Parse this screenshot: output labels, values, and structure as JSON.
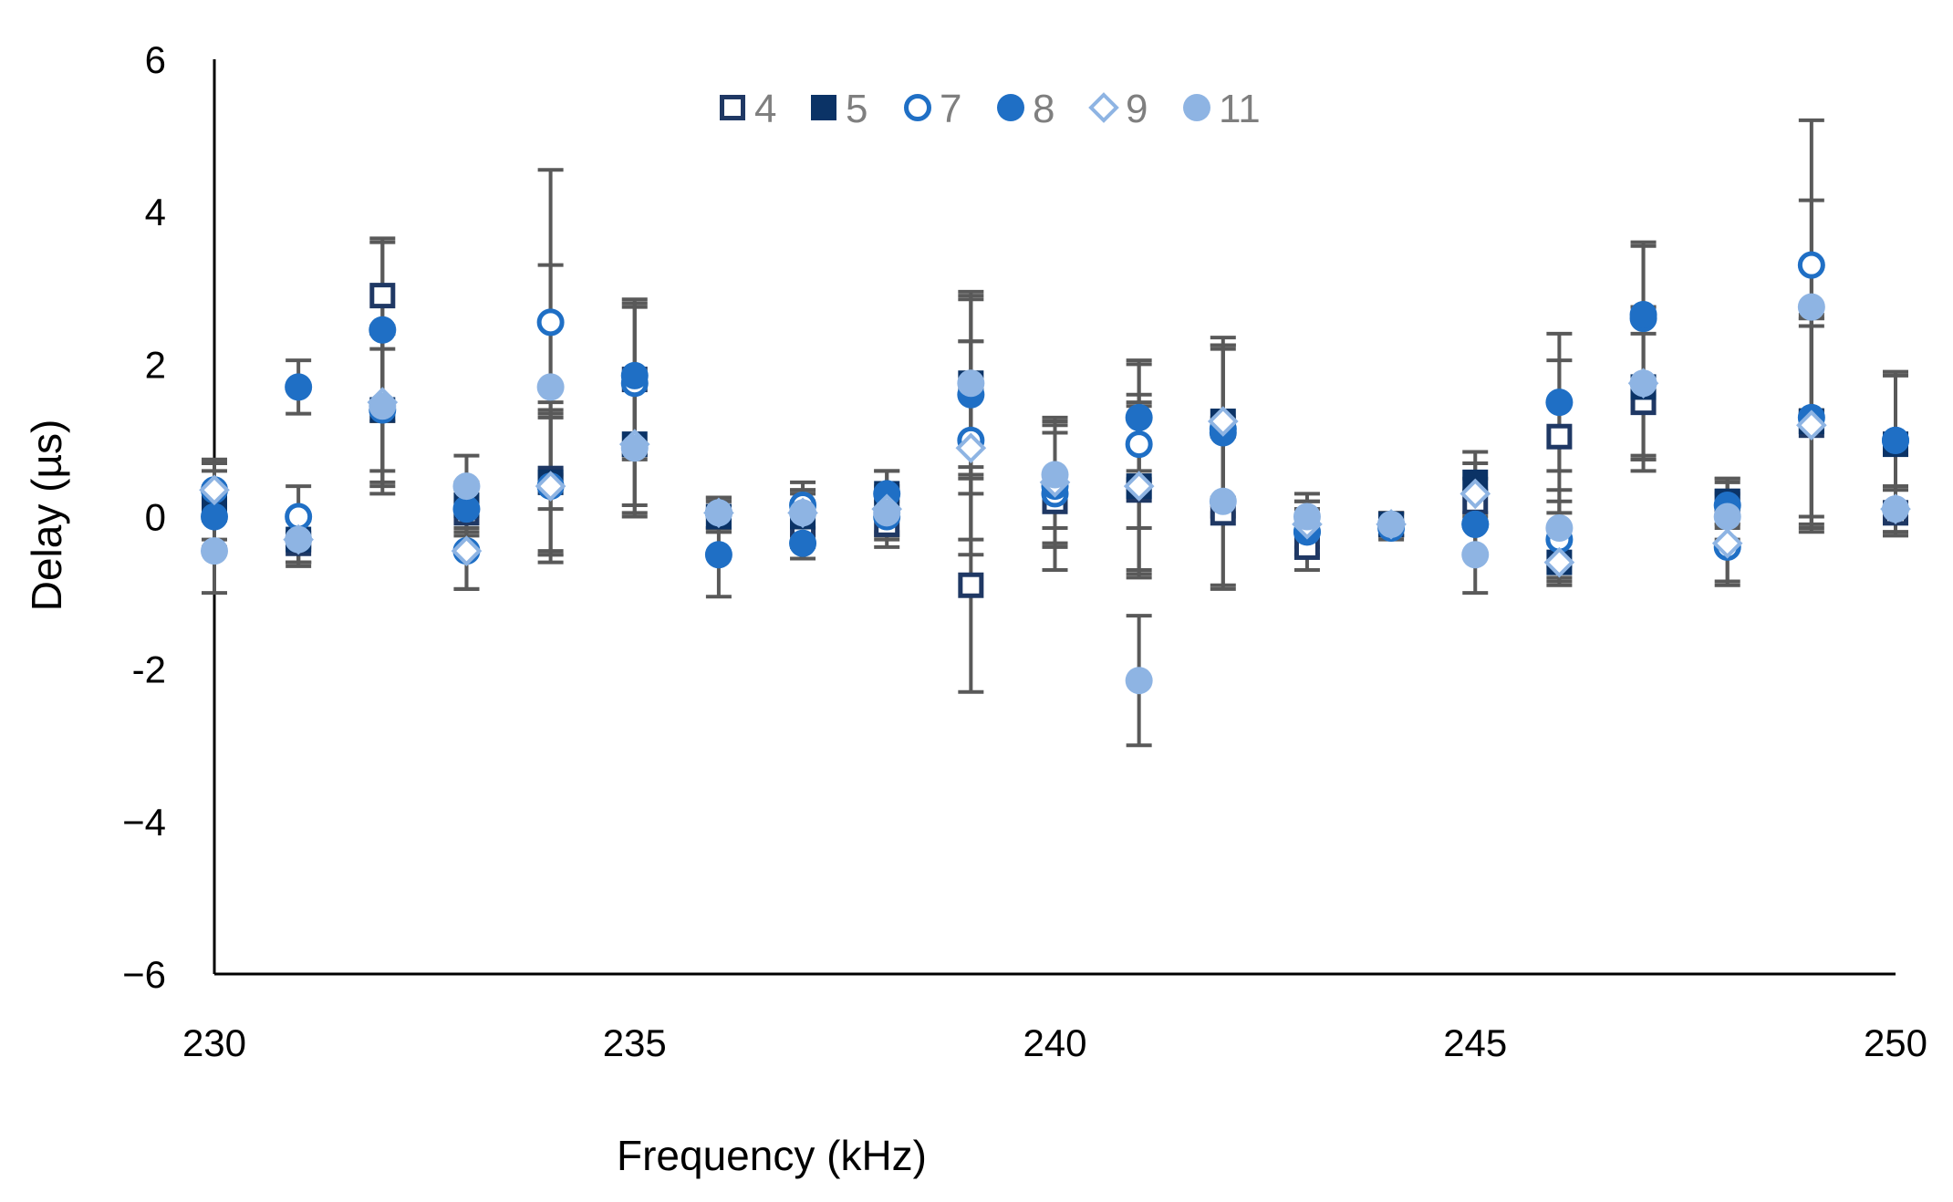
{
  "chart_data": {
    "type": "scatter",
    "title": "",
    "xlabel": "Frequency (kHz)",
    "ylabel": "Delay (µs)",
    "xlim": [
      230,
      250
    ],
    "ylim": [
      -6,
      6
    ],
    "xticks": [
      230,
      235,
      240,
      245,
      250
    ],
    "yticks": [
      6,
      4,
      2,
      0,
      -2,
      -4,
      -6
    ],
    "ytick_labels": [
      "6",
      "4",
      "2",
      "0",
      "-2",
      "−4",
      "−6"
    ],
    "grid": false,
    "legend_position": "top-center",
    "series": [
      {
        "name": "4",
        "marker": "square",
        "filled": false,
        "color": "#1f3864",
        "points": [
          {
            "x": 230,
            "y": 0.2,
            "err": 0.5
          },
          {
            "x": 231,
            "y": -0.35,
            "err": 0.3
          },
          {
            "x": 232,
            "y": 2.9,
            "err": 0.7
          },
          {
            "x": 233,
            "y": 0.05,
            "err": 0.3
          },
          {
            "x": 234,
            "y": 0.5,
            "err": 1.0
          },
          {
            "x": 235,
            "y": 1.8,
            "err": 1.0
          },
          {
            "x": 236,
            "y": 0.0,
            "err": 0.2
          },
          {
            "x": 237,
            "y": -0.1,
            "err": 0.3
          },
          {
            "x": 238,
            "y": -0.1,
            "err": 0.3
          },
          {
            "x": 239,
            "y": -0.9,
            "err": 1.4
          },
          {
            "x": 240,
            "y": 0.2,
            "err": 0.9
          },
          {
            "x": 241,
            "y": 0.35,
            "err": 1.1
          },
          {
            "x": 242,
            "y": 0.05,
            "err": 1.0
          },
          {
            "x": 243,
            "y": -0.4,
            "err": 0.3
          },
          {
            "x": 244,
            "y": -0.1,
            "err": 0.15
          },
          {
            "x": 245,
            "y": 0.2,
            "err": 0.3
          },
          {
            "x": 246,
            "y": 1.05,
            "err": 1.0
          },
          {
            "x": 247,
            "y": 1.5,
            "err": 0.9
          },
          {
            "x": 248,
            "y": 0.2,
            "err": 0.3
          },
          {
            "x": 249,
            "y": 1.2,
            "err": 1.3
          },
          {
            "x": 250,
            "y": 0.05,
            "err": 0.3
          }
        ]
      },
      {
        "name": "5",
        "marker": "square",
        "filled": true,
        "color": "#0b3366",
        "points": [
          {
            "x": 230,
            "y": 0.1,
            "err": 0.5
          },
          {
            "x": 231,
            "y": -0.3,
            "err": 0.3
          },
          {
            "x": 232,
            "y": 1.4,
            "err": 1.1
          },
          {
            "x": 233,
            "y": 0.15,
            "err": 0.3
          },
          {
            "x": 234,
            "y": 0.45,
            "err": 0.9
          },
          {
            "x": 235,
            "y": 0.95,
            "err": 0.9
          },
          {
            "x": 236,
            "y": 0.0,
            "err": 0.2
          },
          {
            "x": 237,
            "y": 0.0,
            "err": 0.3
          },
          {
            "x": 238,
            "y": 0.3,
            "err": 0.3
          },
          {
            "x": 239,
            "y": 1.75,
            "err": 1.1
          },
          {
            "x": 240,
            "y": 0.45,
            "err": 0.8
          },
          {
            "x": 241,
            "y": 0.4,
            "err": 1.2
          },
          {
            "x": 242,
            "y": 1.25,
            "err": 1.0
          },
          {
            "x": 243,
            "y": -0.1,
            "err": 0.3
          },
          {
            "x": 244,
            "y": -0.1,
            "err": 0.15
          },
          {
            "x": 245,
            "y": 0.45,
            "err": 0.4
          },
          {
            "x": 246,
            "y": -0.6,
            "err": 0.25
          },
          {
            "x": 247,
            "y": 1.7,
            "err": 0.9
          },
          {
            "x": 248,
            "y": 0.2,
            "err": 0.3
          },
          {
            "x": 249,
            "y": 1.25,
            "err": 1.4
          },
          {
            "x": 250,
            "y": 0.95,
            "err": 0.9
          }
        ]
      },
      {
        "name": "7",
        "marker": "circle",
        "filled": false,
        "color": "#1f6fc5",
        "points": [
          {
            "x": 230,
            "y": 0.35,
            "err": 0.4
          },
          {
            "x": 231,
            "y": 0.0,
            "err": 0.4
          },
          {
            "x": 232,
            "y": 1.4,
            "err": 1.0
          },
          {
            "x": 233,
            "y": -0.45,
            "err": 0.5
          },
          {
            "x": 234,
            "y": 2.55,
            "err": 2.0
          },
          {
            "x": 235,
            "y": 1.75,
            "err": 1.0
          },
          {
            "x": 236,
            "y": 0.05,
            "err": 0.2
          },
          {
            "x": 237,
            "y": 0.15,
            "err": 0.3
          },
          {
            "x": 238,
            "y": 0.0,
            "err": 0.3
          },
          {
            "x": 239,
            "y": 1.0,
            "err": 1.3
          },
          {
            "x": 240,
            "y": 0.3,
            "err": 1.0
          },
          {
            "x": 241,
            "y": 0.95,
            "err": 1.1
          },
          {
            "x": 242,
            "y": 1.15,
            "err": 1.1
          },
          {
            "x": 243,
            "y": -0.2,
            "err": 0.3
          },
          {
            "x": 244,
            "y": -0.1,
            "err": 0.15
          },
          {
            "x": 245,
            "y": -0.1,
            "err": 0.4
          },
          {
            "x": 246,
            "y": -0.3,
            "err": 0.5
          },
          {
            "x": 247,
            "y": 2.6,
            "err": 1.0
          },
          {
            "x": 248,
            "y": -0.4,
            "err": 0.5
          },
          {
            "x": 249,
            "y": 3.3,
            "err": 1.9
          },
          {
            "x": 250,
            "y": 1.0,
            "err": 0.9
          }
        ]
      },
      {
        "name": "8",
        "marker": "circle",
        "filled": true,
        "color": "#1f6fc5",
        "points": [
          {
            "x": 230,
            "y": 0.0,
            "err": 0.4
          },
          {
            "x": 231,
            "y": 1.7,
            "err": 0.35
          },
          {
            "x": 232,
            "y": 2.45,
            "err": 1.2
          },
          {
            "x": 233,
            "y": 0.1,
            "err": 0.3
          },
          {
            "x": 234,
            "y": 0.4,
            "err": 1.0
          },
          {
            "x": 235,
            "y": 1.85,
            "err": 1.0
          },
          {
            "x": 236,
            "y": -0.5,
            "err": 0.55
          },
          {
            "x": 237,
            "y": -0.35,
            "err": 0.2
          },
          {
            "x": 238,
            "y": 0.3,
            "err": 0.3
          },
          {
            "x": 239,
            "y": 1.6,
            "err": 1.3
          },
          {
            "x": 240,
            "y": 0.4,
            "err": 0.8
          },
          {
            "x": 241,
            "y": 1.3,
            "err": 0.7
          },
          {
            "x": 242,
            "y": 1.1,
            "err": 1.1
          },
          {
            "x": 243,
            "y": -0.2,
            "err": 0.3
          },
          {
            "x": 244,
            "y": -0.15,
            "err": 0.15
          },
          {
            "x": 245,
            "y": -0.1,
            "err": 0.4
          },
          {
            "x": 246,
            "y": 1.5,
            "err": 0.9
          },
          {
            "x": 247,
            "y": 2.65,
            "err": 0.9
          },
          {
            "x": 248,
            "y": 0.15,
            "err": 0.3
          },
          {
            "x": 249,
            "y": 1.3,
            "err": 1.3
          },
          {
            "x": 250,
            "y": 1.0,
            "err": 0.9
          }
        ]
      },
      {
        "name": "9",
        "marker": "diamond",
        "filled": false,
        "color": "#8eb4e3",
        "points": [
          {
            "x": 230,
            "y": 0.35,
            "err": 0.4
          },
          {
            "x": 231,
            "y": -0.3,
            "err": 0.3
          },
          {
            "x": 232,
            "y": 1.5,
            "err": 0.9
          },
          {
            "x": 233,
            "y": -0.45,
            "err": 0.5
          },
          {
            "x": 234,
            "y": 0.4,
            "err": 0.9
          },
          {
            "x": 235,
            "y": 0.95,
            "err": 0.8
          },
          {
            "x": 236,
            "y": 0.05,
            "err": 0.2
          },
          {
            "x": 237,
            "y": 0.05,
            "err": 0.3
          },
          {
            "x": 238,
            "y": 0.1,
            "err": 0.3
          },
          {
            "x": 239,
            "y": 0.9,
            "err": 1.4
          },
          {
            "x": 240,
            "y": 0.45,
            "err": 0.8
          },
          {
            "x": 241,
            "y": 0.4,
            "err": 1.1
          },
          {
            "x": 242,
            "y": 1.25,
            "err": 1.1
          },
          {
            "x": 243,
            "y": -0.1,
            "err": 0.3
          },
          {
            "x": 244,
            "y": -0.1,
            "err": 0.15
          },
          {
            "x": 245,
            "y": 0.3,
            "err": 0.4
          },
          {
            "x": 246,
            "y": -0.6,
            "err": 0.3
          },
          {
            "x": 247,
            "y": 1.75,
            "err": 1.0
          },
          {
            "x": 248,
            "y": -0.35,
            "err": 0.5
          },
          {
            "x": 249,
            "y": 1.2,
            "err": 1.4
          },
          {
            "x": 250,
            "y": 0.1,
            "err": 0.3
          }
        ]
      },
      {
        "name": "11",
        "marker": "circle",
        "filled": true,
        "color": "#8eb4e3",
        "points": [
          {
            "x": 230,
            "y": -0.45,
            "err": 0.55
          },
          {
            "x": 231,
            "y": -0.3,
            "err": 0.3
          },
          {
            "x": 232,
            "y": 1.45,
            "err": 1.0
          },
          {
            "x": 233,
            "y": 0.4,
            "err": 0.4
          },
          {
            "x": 234,
            "y": 1.7,
            "err": 1.6
          },
          {
            "x": 235,
            "y": 0.9,
            "err": 0.9
          },
          {
            "x": 236,
            "y": 0.05,
            "err": 0.2
          },
          {
            "x": 237,
            "y": 0.05,
            "err": 0.3
          },
          {
            "x": 238,
            "y": 0.05,
            "err": 0.3
          },
          {
            "x": 239,
            "y": 1.75,
            "err": 1.2
          },
          {
            "x": 240,
            "y": 0.55,
            "err": 0.7
          },
          {
            "x": 241,
            "y": -2.15,
            "err": 0.85
          },
          {
            "x": 242,
            "y": 0.2,
            "err": 1.1
          },
          {
            "x": 243,
            "y": 0.0,
            "err": 0.3
          },
          {
            "x": 244,
            "y": -0.1,
            "err": 0.15
          },
          {
            "x": 245,
            "y": -0.5,
            "err": 0.5
          },
          {
            "x": 246,
            "y": -0.15,
            "err": 0.5
          },
          {
            "x": 247,
            "y": 1.75,
            "err": 1.0
          },
          {
            "x": 248,
            "y": 0.0,
            "err": 0.3
          },
          {
            "x": 249,
            "y": 2.75,
            "err": 1.4
          },
          {
            "x": 250,
            "y": 0.1,
            "err": 0.3
          }
        ]
      }
    ]
  },
  "colors": {
    "axis": "#000000",
    "errorbar": "#595959",
    "legend_text": "#7f7f7f",
    "text": "#000000"
  }
}
